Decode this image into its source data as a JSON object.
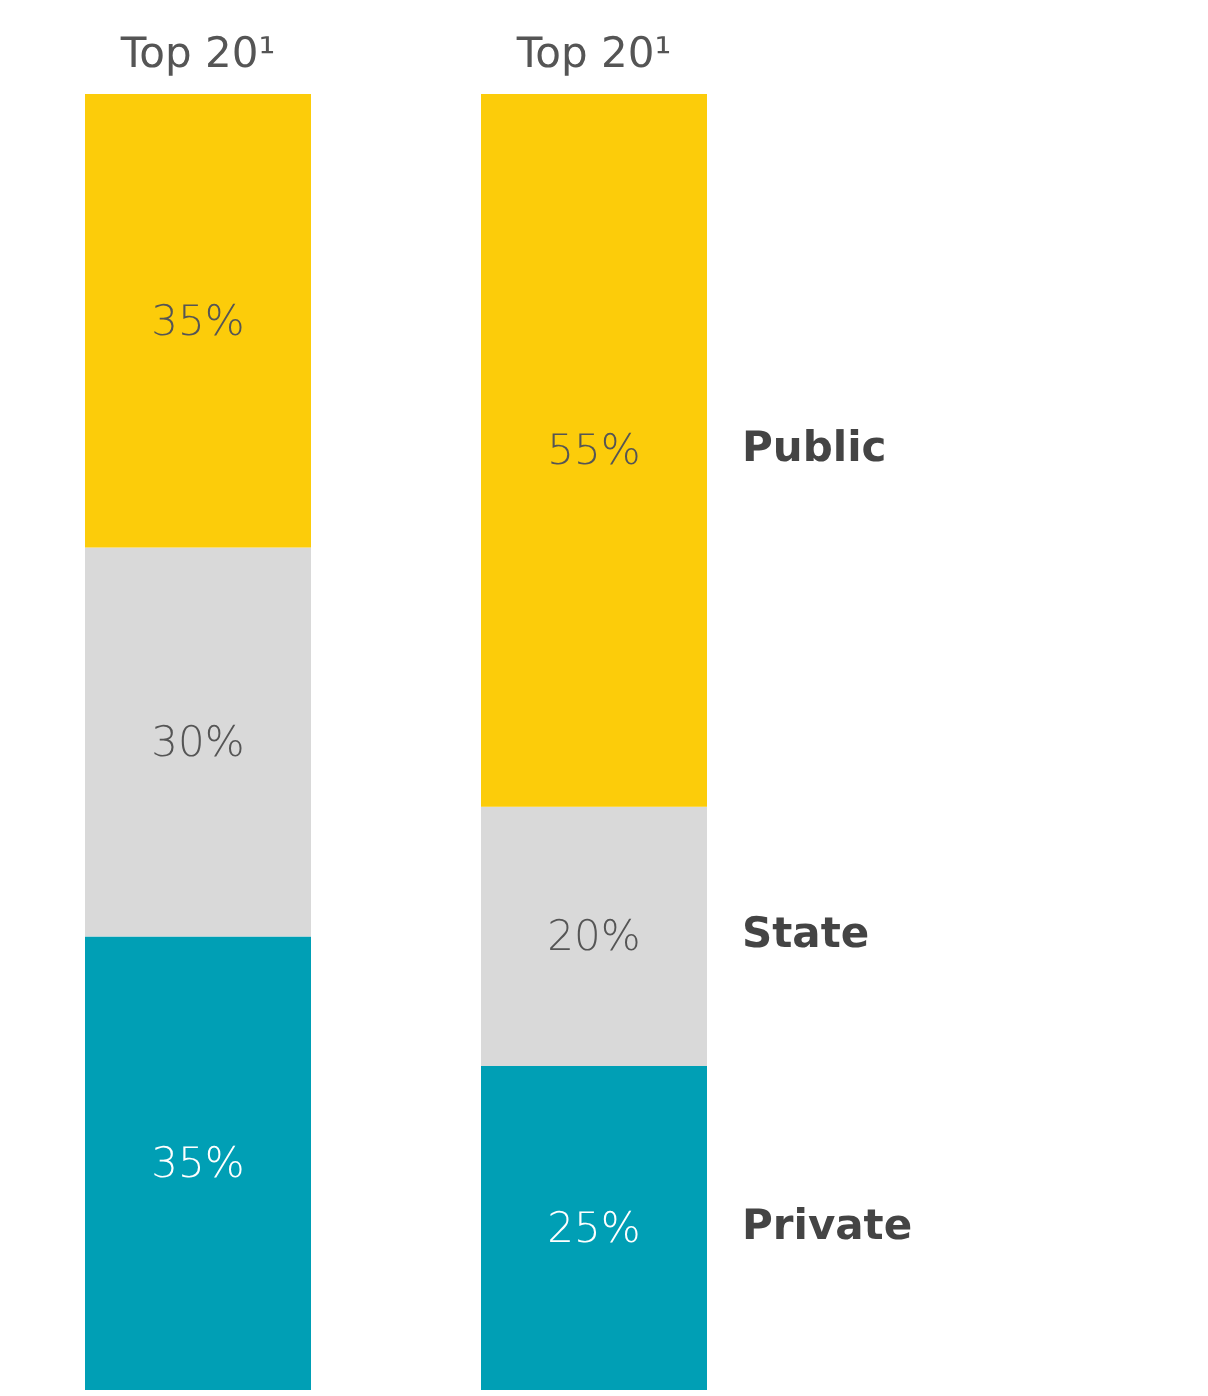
{
  "chart_data": {
    "type": "bar",
    "stacked": true,
    "categories": [
      "Top 20¹",
      "Top 20¹"
    ],
    "series": [
      {
        "name": "Private",
        "color": "#009fb5",
        "values": [
          35,
          25
        ],
        "value_labels": [
          "35%",
          "25%"
        ]
      },
      {
        "name": "State",
        "color": "#d9d9d9",
        "values": [
          30,
          20
        ],
        "value_labels": [
          "30%",
          "20%"
        ]
      },
      {
        "name": "Public",
        "color": "#fccc0a",
        "values": [
          35,
          55
        ],
        "value_labels": [
          "35%",
          "55%"
        ]
      }
    ],
    "tick_labels": "x"
  }
}
